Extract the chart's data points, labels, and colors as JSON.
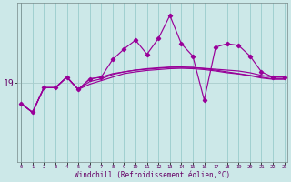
{
  "xlabel": "Windchill (Refroidissement éolien,°C)",
  "x_ticks": [
    0,
    1,
    2,
    3,
    4,
    5,
    6,
    7,
    8,
    9,
    10,
    11,
    12,
    13,
    14,
    15,
    16,
    17,
    18,
    19,
    20,
    21,
    22,
    23
  ],
  "ylabel_label": "19",
  "y_label_val": 19,
  "background_color": "#cce8e8",
  "grid_color": "#99cccc",
  "line_color": "#990099",
  "xlim": [
    -0.3,
    23.3
  ],
  "ylim_min": 14.5,
  "ylim_max": 23.5,
  "series_spiky": [
    17.8,
    17.3,
    18.7,
    18.7,
    19.3,
    18.6,
    19.2,
    19.3,
    20.3,
    20.9,
    21.4,
    20.6,
    21.5,
    22.8,
    21.2,
    20.5,
    18.0,
    21.0,
    21.2,
    21.1,
    20.5,
    19.6,
    19.3,
    19.3
  ],
  "series_trend1": [
    17.8,
    17.3,
    18.7,
    18.7,
    19.3,
    18.6,
    19.2,
    19.3,
    19.5,
    19.6,
    19.7,
    19.75,
    19.8,
    19.85,
    19.85,
    19.85,
    19.8,
    19.75,
    19.7,
    19.65,
    19.55,
    19.4,
    19.3,
    19.3
  ],
  "series_trend2": [
    17.8,
    17.3,
    18.7,
    18.7,
    19.3,
    18.6,
    19.05,
    19.2,
    19.45,
    19.6,
    19.7,
    19.78,
    19.83,
    19.87,
    19.88,
    19.85,
    19.78,
    19.7,
    19.6,
    19.5,
    19.4,
    19.3,
    19.2,
    19.2
  ],
  "series_trend3": [
    17.8,
    17.3,
    18.7,
    18.7,
    19.3,
    18.6,
    18.9,
    19.1,
    19.3,
    19.5,
    19.6,
    19.68,
    19.73,
    19.78,
    19.8,
    19.78,
    19.73,
    19.65,
    19.55,
    19.48,
    19.38,
    19.25,
    19.18,
    19.18
  ]
}
